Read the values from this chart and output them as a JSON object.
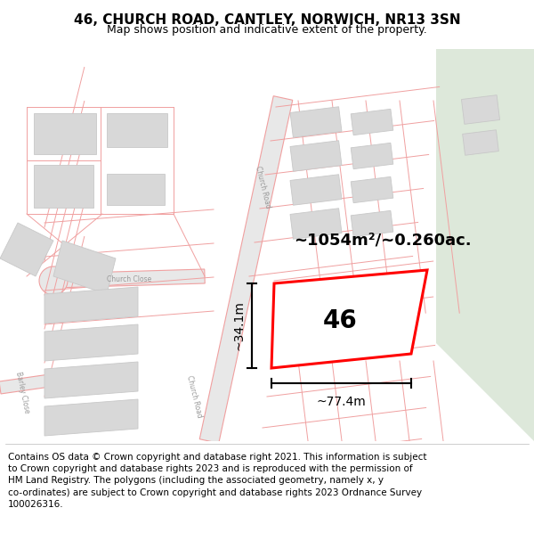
{
  "title": "46, CHURCH ROAD, CANTLEY, NORWICH, NR13 3SN",
  "subtitle": "Map shows position and indicative extent of the property.",
  "footer": "Contains OS data © Crown copyright and database right 2021. This information is subject to Crown copyright and database rights 2023 and is reproduced with the permission of HM Land Registry. The polygons (including the associated geometry, namely x, y co-ordinates) are subject to Crown copyright and database rights 2023 Ordnance Survey 100026316.",
  "title_fontsize": 11,
  "subtitle_fontsize": 9,
  "footer_fontsize": 7.5,
  "map_bg": "#f7f7f7",
  "road_fill": "#e8e8e8",
  "road_stroke": "#f0a0a0",
  "building_fill": "#d8d8d8",
  "building_stroke": "#c8c8c8",
  "plot_line_color": "#f0a0a0",
  "green_fill": "#dde8da",
  "highlight_color": "#ff0000",
  "area_label": "~1054m²/~0.260ac.",
  "number_label": "46",
  "dim_width_label": "~77.4m",
  "dim_height_label": "~34.1m"
}
